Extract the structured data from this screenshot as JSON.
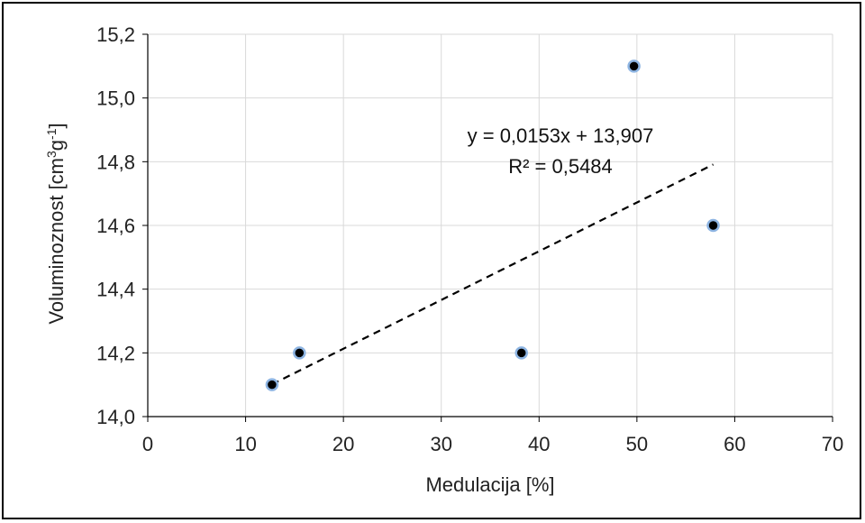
{
  "chart_data": {
    "type": "scatter",
    "title": "",
    "xlabel": "Medulacija  [%]",
    "ylabel": {
      "base": "Voluminoznost  [cm",
      "sup1": "3",
      "mid": "g",
      "sup2": "-1",
      "end": "]"
    },
    "xlim": [
      0,
      70
    ],
    "ylim": [
      14.0,
      15.2
    ],
    "x_ticks": [
      0,
      10,
      20,
      30,
      40,
      50,
      60,
      70
    ],
    "x_tick_labels": [
      "0",
      "10",
      "20",
      "30",
      "40",
      "50",
      "60",
      "70"
    ],
    "y_ticks": [
      14.0,
      14.2,
      14.4,
      14.6,
      14.8,
      15.0,
      15.2
    ],
    "y_tick_labels": [
      "14,0",
      "14,2",
      "14,4",
      "14,6",
      "14,8",
      "15,0",
      "15,2"
    ],
    "grid": true,
    "legend": "none",
    "points": [
      {
        "x": 12.7,
        "y": 14.1
      },
      {
        "x": 15.5,
        "y": 14.2
      },
      {
        "x": 38.2,
        "y": 14.2
      },
      {
        "x": 49.7,
        "y": 15.1
      },
      {
        "x": 57.8,
        "y": 14.6
      }
    ],
    "trendline": {
      "slope": 0.0153,
      "intercept": 13.907,
      "x_range": [
        12.7,
        57.8
      ],
      "equation_label": "y = 0,0153x + 13,907",
      "r2_label": "R² = 0,5484"
    },
    "colors": {
      "marker_fill": "#000000",
      "marker_edge": "#8db4e2",
      "trendline": "#000000",
      "grid": "#d9d9d9",
      "axis": "#000000"
    }
  }
}
